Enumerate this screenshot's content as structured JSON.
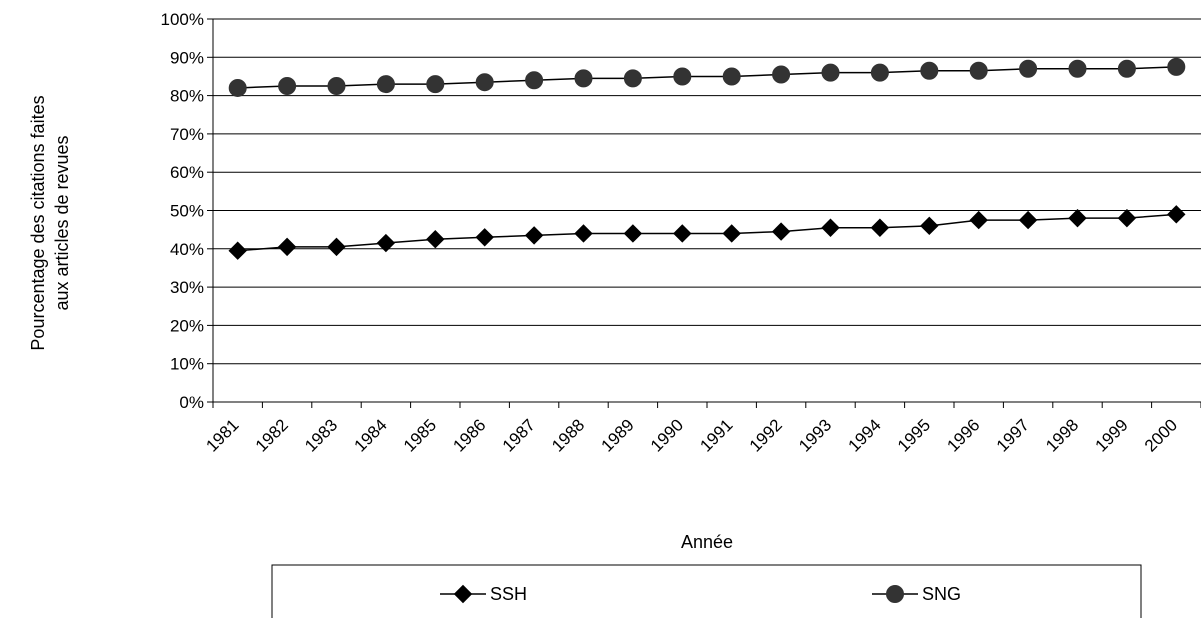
{
  "chart_data": {
    "type": "line",
    "xlabel": "Année",
    "ylabel_lines": [
      "Pourcentage des citations faites",
      "aux articles de revues"
    ],
    "categories": [
      "1981",
      "1982",
      "1983",
      "1984",
      "1985",
      "1986",
      "1987",
      "1988",
      "1989",
      "1990",
      "1991",
      "1992",
      "1993",
      "1994",
      "1995",
      "1996",
      "1997",
      "1998",
      "1999",
      "2000"
    ],
    "ylim": [
      0,
      100
    ],
    "yticks": [
      "0%",
      "10%",
      "20%",
      "30%",
      "40%",
      "50%",
      "60%",
      "70%",
      "80%",
      "90%",
      "100%"
    ],
    "grid": true,
    "legend_position": "bottom",
    "series": [
      {
        "name": "SSH",
        "marker": "diamond",
        "color": "#000000",
        "values": [
          39.5,
          40.5,
          40.5,
          41.5,
          42.5,
          43,
          43.5,
          44,
          44,
          44,
          44,
          44.5,
          45.5,
          45.5,
          46,
          47.5,
          47.5,
          48,
          48,
          49
        ]
      },
      {
        "name": "SNG",
        "marker": "circle",
        "color": "#333333",
        "values": [
          82,
          82.5,
          82.5,
          83,
          83,
          83.5,
          84,
          84.5,
          84.5,
          85,
          85,
          85.5,
          86,
          86,
          86.5,
          86.5,
          87,
          87,
          87,
          87.5
        ]
      }
    ]
  }
}
